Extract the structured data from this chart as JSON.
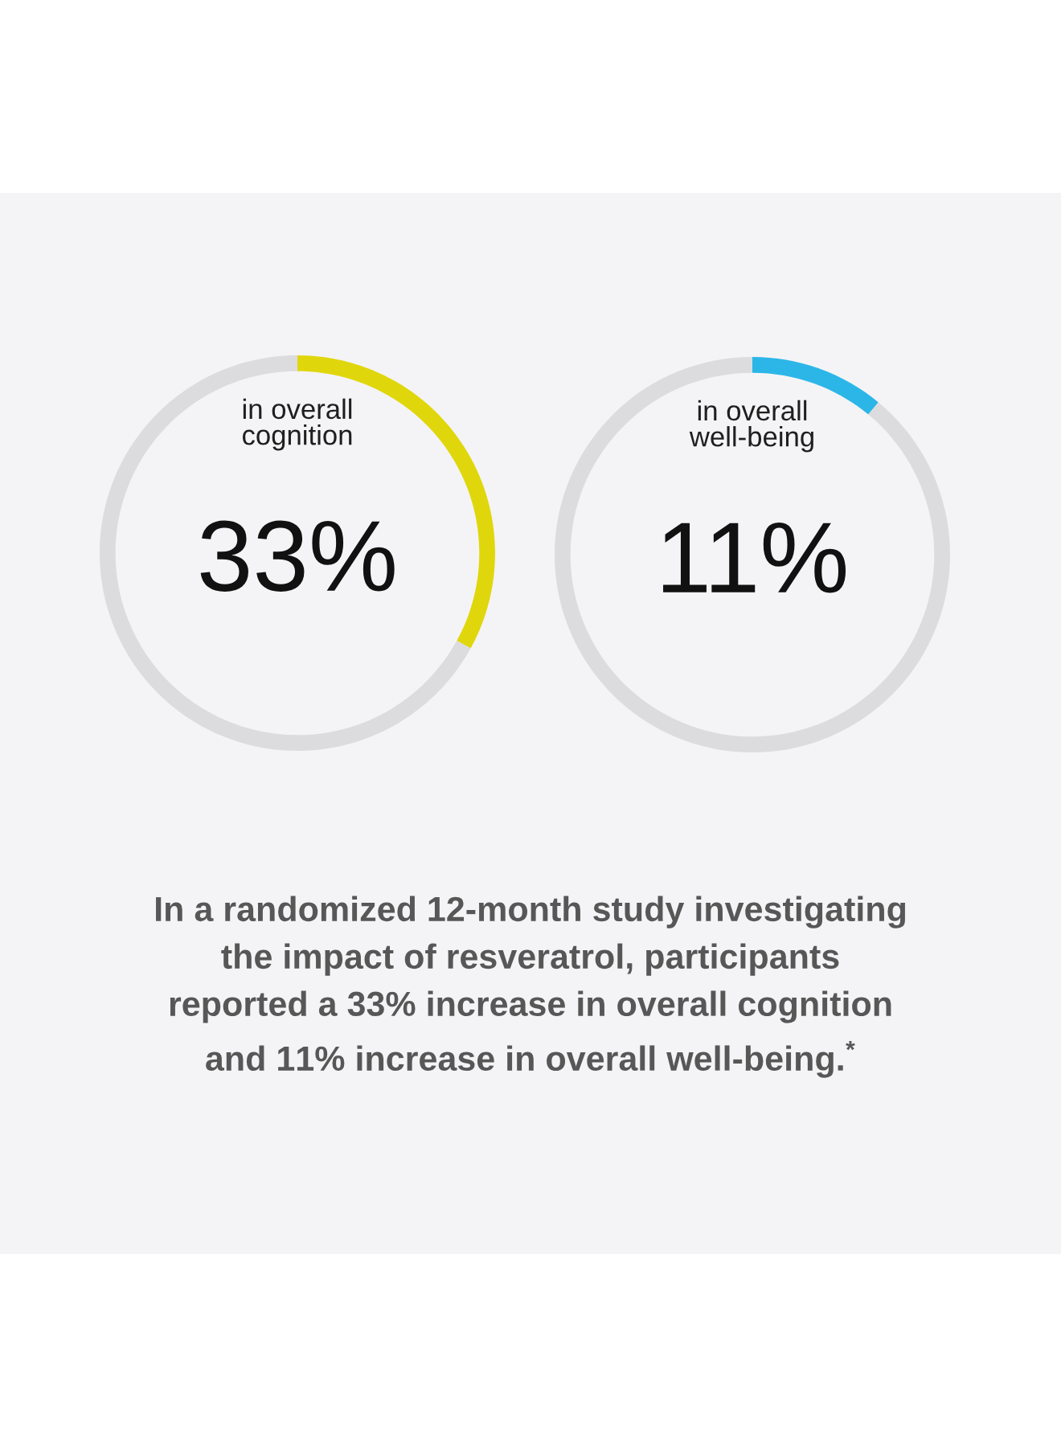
{
  "chart_data": [
    {
      "type": "donut",
      "title": "in overall\ncognition",
      "categories": [
        null,
        null
      ],
      "values": [
        33,
        67
      ],
      "colors": [
        "#e0d60c",
        "#dcdcdf"
      ],
      "annotations": [
        "33%"
      ]
    },
    {
      "type": "donut",
      "title": "in overall\nwell-being",
      "categories": [
        null,
        null
      ],
      "values": [
        11,
        89
      ],
      "colors": [
        "#2cb6e8",
        "#dcdcdf"
      ],
      "annotations": [
        "11%"
      ]
    },
    {
      "type": "other",
      "annotations": [
        "In a randomized 12-month study investigating\nthe impact of resveratrol, participants\nreported a 33% increase in overall cognition\nand 11% increase in overall well-being.$^{*}$"
      ]
    }
  ]
}
